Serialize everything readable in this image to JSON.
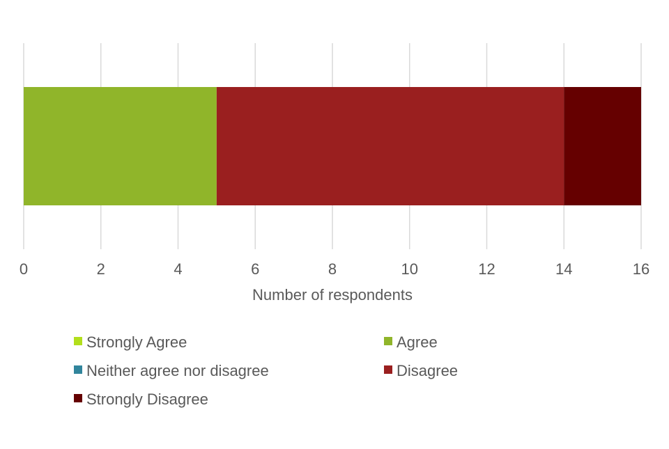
{
  "chart_data": {
    "type": "bar",
    "orientation": "horizontal",
    "stacked": true,
    "categories": [
      ""
    ],
    "series": [
      {
        "name": "Strongly Agree",
        "values": [
          0
        ],
        "color": "#b2df1c"
      },
      {
        "name": "Agree",
        "values": [
          5
        ],
        "color": "#90b52a"
      },
      {
        "name": "Neither agree nor disagree",
        "values": [
          0
        ],
        "color": "#31859c"
      },
      {
        "name": "Disagree",
        "values": [
          9
        ],
        "color": "#9a1f1f"
      },
      {
        "name": "Strongly Disagree",
        "values": [
          2
        ],
        "color": "#650000"
      }
    ],
    "title": "",
    "xlabel": "Number of respondents",
    "ylabel": "",
    "xlim": [
      0,
      16
    ],
    "xticks": [
      "0",
      "2",
      "4",
      "6",
      "8",
      "10",
      "12",
      "14",
      "16"
    ],
    "grid": true,
    "legend_position": "bottom"
  }
}
